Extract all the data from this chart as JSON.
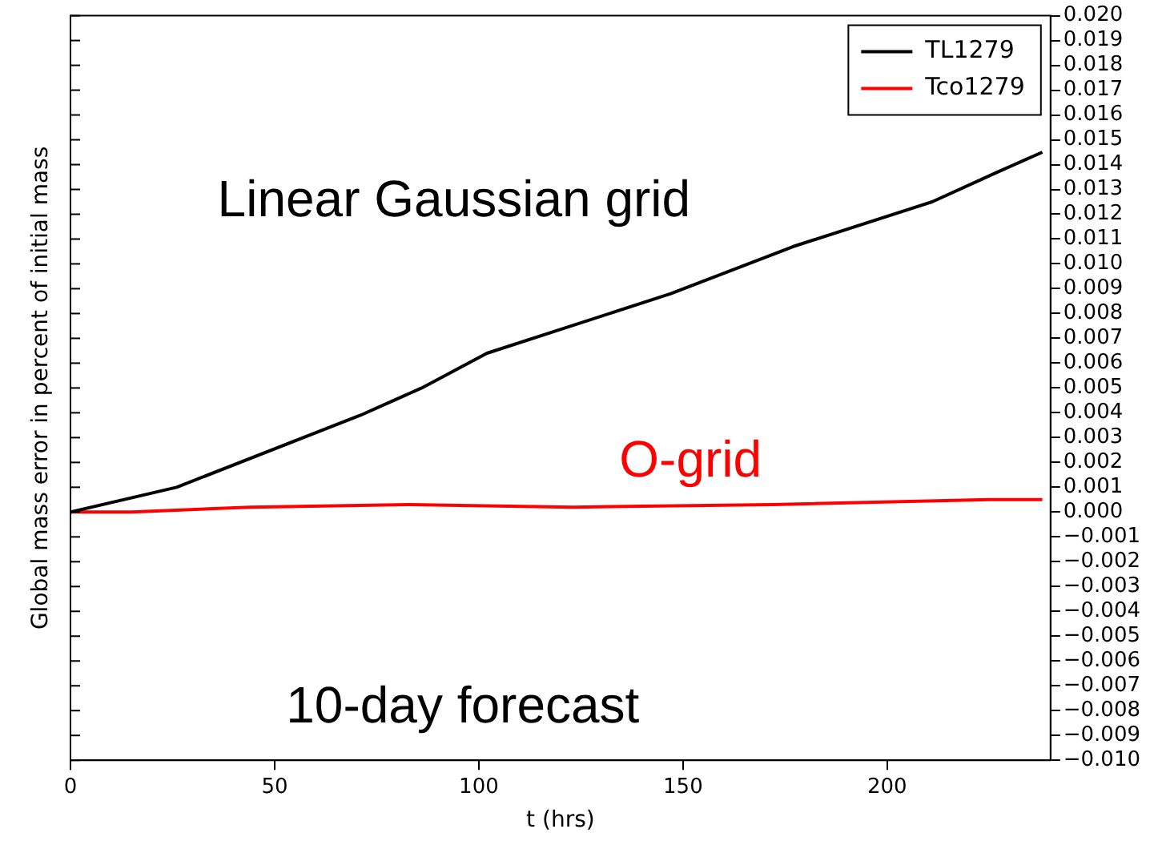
{
  "chart_data": {
    "type": "line",
    "xlabel": "t (hrs)",
    "ylabel": "Global mass error in percent of initial mass",
    "xlim": [
      0,
      240
    ],
    "xticks": [
      0,
      50,
      100,
      150,
      200
    ],
    "ylim": [
      -0.01,
      0.02
    ],
    "yticks": [
      {
        "value": -0.01,
        "label": "−0.010"
      },
      {
        "value": -0.009,
        "label": "−0.009"
      },
      {
        "value": -0.008,
        "label": "−0.008"
      },
      {
        "value": -0.007,
        "label": "−0.007"
      },
      {
        "value": -0.006,
        "label": "−0.006"
      },
      {
        "value": -0.005,
        "label": "−0.005"
      },
      {
        "value": -0.004,
        "label": "−0.004"
      },
      {
        "value": -0.003,
        "label": "−0.003"
      },
      {
        "value": -0.002,
        "label": "−0.002"
      },
      {
        "value": -0.001,
        "label": "−0.001"
      },
      {
        "value": 0,
        "label": "0.000"
      },
      {
        "value": 0.001,
        "label": "0.001"
      },
      {
        "value": 0.002,
        "label": "0.002"
      },
      {
        "value": 0.003,
        "label": "0.003"
      },
      {
        "value": 0.004,
        "label": "0.004"
      },
      {
        "value": 0.005,
        "label": "0.005"
      },
      {
        "value": 0.006,
        "label": "0.006"
      },
      {
        "value": 0.007,
        "label": "0.007"
      },
      {
        "value": 0.008,
        "label": "0.008"
      },
      {
        "value": 0.009,
        "label": "0.009"
      },
      {
        "value": 0.01,
        "label": "0.010"
      },
      {
        "value": 0.011,
        "label": "0.011"
      },
      {
        "value": 0.012,
        "label": "0.012"
      },
      {
        "value": 0.013,
        "label": "0.013"
      },
      {
        "value": 0.014,
        "label": "0.014"
      },
      {
        "value": 0.015,
        "label": "0.015"
      },
      {
        "value": 0.016,
        "label": "0.016"
      },
      {
        "value": 0.017,
        "label": "0.017"
      },
      {
        "value": 0.018,
        "label": "0.018"
      },
      {
        "value": 0.019,
        "label": "0.019"
      },
      {
        "value": 0.02,
        "label": "0.020"
      }
    ],
    "grid": false,
    "legend": "top right",
    "marker": "none",
    "line_style": "solid",
    "series": [
      {
        "name": "TL1279",
        "color": "#000000",
        "x": [
          0,
          26,
          71,
          86,
          102,
          147,
          177,
          211,
          227,
          238
        ],
        "values": [
          0,
          0.001,
          0.0039,
          0.005,
          0.0064,
          0.0088,
          0.0107,
          0.0125,
          0.0137,
          0.0145
        ]
      },
      {
        "name": "Tco1279",
        "color": "#ff0000",
        "x": [
          0,
          15,
          44,
          83,
          123,
          172,
          225,
          238
        ],
        "values": [
          0,
          0,
          0.0002,
          0.0003,
          0.0002,
          0.0003,
          0.0005,
          0.0005
        ]
      }
    ],
    "annotations": [
      "Linear Gaussian grid",
      "O-grid",
      "10-day forecast"
    ]
  }
}
